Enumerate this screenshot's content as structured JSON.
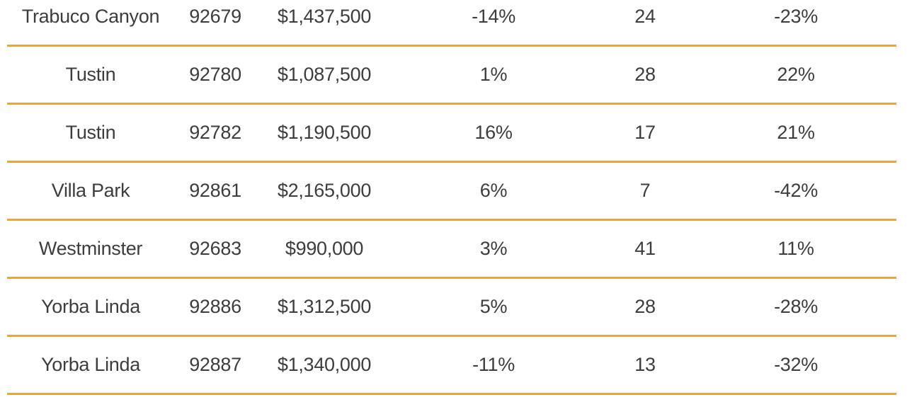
{
  "table": {
    "divider_color": "#F7A61A",
    "text_color": "#3d3d3d",
    "rows": [
      [
        "Trabuco Canyon",
        "92679",
        "$1,437,500",
        "-14%",
        "24",
        "-23%"
      ],
      [
        "Tustin",
        "92780",
        "$1,087,500",
        "1%",
        "28",
        "22%"
      ],
      [
        "Tustin",
        "92782",
        "$1,190,500",
        "16%",
        "17",
        "21%"
      ],
      [
        "Villa Park",
        "92861",
        "$2,165,000",
        "6%",
        "7",
        "-42%"
      ],
      [
        "Westminster",
        "92683",
        "$990,000",
        "3%",
        "41",
        "11%"
      ],
      [
        "Yorba Linda",
        "92886",
        "$1,312,500",
        "5%",
        "28",
        "-28%"
      ],
      [
        "Yorba Linda",
        "92887",
        "$1,340,000",
        "-11%",
        "13",
        "-32%"
      ]
    ]
  }
}
